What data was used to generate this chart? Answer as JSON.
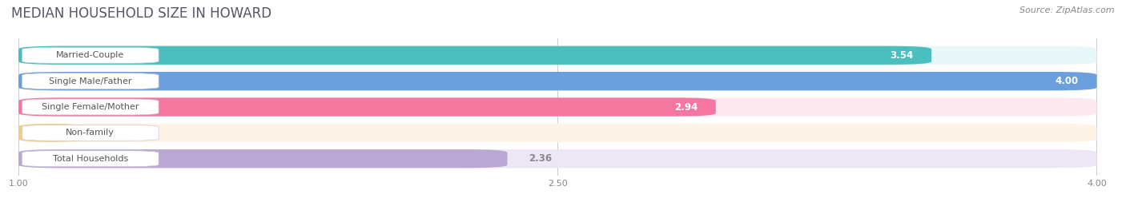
{
  "title": "MEDIAN HOUSEHOLD SIZE IN HOWARD",
  "source": "Source: ZipAtlas.com",
  "categories": [
    "Married-Couple",
    "Single Male/Father",
    "Single Female/Mother",
    "Non-family",
    "Total Households"
  ],
  "values": [
    3.54,
    4.0,
    2.94,
    1.18,
    2.36
  ],
  "bar_colors": [
    "#4bbfbf",
    "#6b9fdd",
    "#f577a0",
    "#f5c98a",
    "#b9a8d4"
  ],
  "bar_bg_colors": [
    "#e8f7f7",
    "#ddeaf8",
    "#fde8ef",
    "#fdf3e7",
    "#ece6f5"
  ],
  "xmin": 1.0,
  "xmax": 4.0,
  "xticks": [
    1.0,
    2.5,
    4.0
  ],
  "title_fontsize": 12,
  "label_fontsize": 8,
  "bar_label_fontsize": 8.5,
  "source_fontsize": 8,
  "background_color": "#ffffff",
  "value_label_threshold": 2.5
}
